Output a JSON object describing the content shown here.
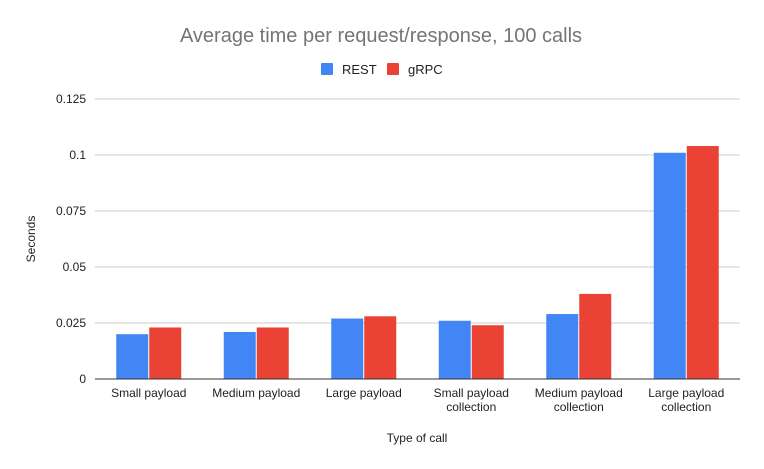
{
  "chart_data": {
    "type": "bar",
    "title": "Average time per request/response, 100 calls",
    "xlabel": "Type of call",
    "ylabel": "Seconds",
    "categories": [
      [
        "Small payload"
      ],
      [
        "Medium payload"
      ],
      [
        "Large payload"
      ],
      [
        "Small payload",
        "collection"
      ],
      [
        "Medium payload",
        "collection"
      ],
      [
        "Large payload",
        "collection"
      ]
    ],
    "series": [
      {
        "name": "REST",
        "color": "#4285F4",
        "values": [
          0.02,
          0.021,
          0.027,
          0.026,
          0.029,
          0.101
        ]
      },
      {
        "name": "gRPC",
        "color": "#EA4335",
        "values": [
          0.023,
          0.023,
          0.028,
          0.024,
          0.038,
          0.104
        ]
      }
    ],
    "ylim": [
      0,
      0.125
    ],
    "yticks": [
      "0",
      "0.025",
      "0.05",
      "0.075",
      "0.1",
      "0.125"
    ],
    "grid": true,
    "legend_position": "top-center"
  }
}
